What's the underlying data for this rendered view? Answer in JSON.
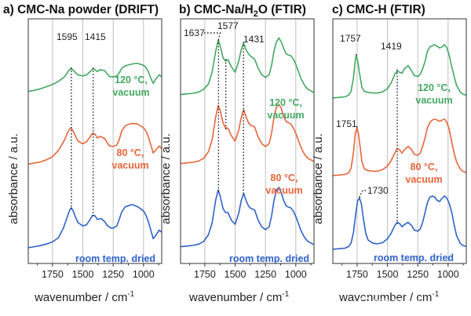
{
  "colors": {
    "green": "#43a861",
    "orange": "#e8653a",
    "blue": "#2f62c8"
  },
  "axis": {
    "ylabel": "absorbance / a.u.",
    "xlabel_main": "wavenumber / cm",
    "xlabel_sup": "-1"
  },
  "watermark": "新能源Leader",
  "chart_data": [
    {
      "type": "line",
      "title": "a) CMC-Na powder (DRIFT)",
      "xlabel": "wavenumber / cm-1",
      "ylabel": "absorbance / a.u.",
      "xlim": [
        1950,
        850
      ],
      "x_reversed": true,
      "ticks": [
        1750,
        1500,
        1250,
        1000
      ],
      "tick_labels": [
        "1750",
        "1500",
        "1250",
        "1000"
      ],
      "grid": [
        1750,
        1500,
        1250,
        1000
      ],
      "peak_marks": [
        {
          "x": 1595,
          "label": "1595",
          "on": [
            0,
            1,
            2
          ]
        },
        {
          "x": 1415,
          "label": "1415",
          "on": [
            0,
            1,
            2
          ]
        }
      ],
      "series": [
        {
          "label": "120 °C, vacuum",
          "color": "green",
          "x": [
            1950,
            1900,
            1850,
            1800,
            1750,
            1700,
            1650,
            1620,
            1600,
            1580,
            1560,
            1540,
            1500,
            1470,
            1440,
            1420,
            1400,
            1380,
            1360,
            1320,
            1300,
            1280,
            1250,
            1220,
            1200,
            1180,
            1150,
            1120,
            1100,
            1060,
            1040,
            1000,
            980,
            960,
            940,
            920,
            900,
            870,
            850
          ],
          "y": [
            0.05,
            0.07,
            0.1,
            0.14,
            0.18,
            0.24,
            0.33,
            0.43,
            0.48,
            0.45,
            0.4,
            0.36,
            0.34,
            0.36,
            0.42,
            0.47,
            0.46,
            0.42,
            0.46,
            0.44,
            0.38,
            0.33,
            0.32,
            0.34,
            0.4,
            0.48,
            0.53,
            0.55,
            0.56,
            0.58,
            0.57,
            0.54,
            0.5,
            0.42,
            0.3,
            0.2,
            0.28,
            0.36,
            0.32
          ]
        },
        {
          "label": "80 °C, vacuum",
          "color": "orange",
          "x": [
            1950,
            1900,
            1850,
            1800,
            1750,
            1700,
            1650,
            1620,
            1600,
            1580,
            1560,
            1540,
            1500,
            1470,
            1440,
            1420,
            1400,
            1380,
            1360,
            1320,
            1300,
            1280,
            1250,
            1220,
            1200,
            1180,
            1150,
            1120,
            1100,
            1060,
            1040,
            1000,
            980,
            960,
            940,
            920,
            900,
            870,
            850
          ],
          "y": [
            0.04,
            0.06,
            0.08,
            0.12,
            0.18,
            0.3,
            0.5,
            0.66,
            0.72,
            0.66,
            0.56,
            0.47,
            0.42,
            0.46,
            0.55,
            0.62,
            0.6,
            0.53,
            0.56,
            0.52,
            0.44,
            0.38,
            0.37,
            0.4,
            0.5,
            0.66,
            0.76,
            0.79,
            0.8,
            0.8,
            0.78,
            0.72,
            0.66,
            0.55,
            0.4,
            0.25,
            0.3,
            0.38,
            0.33
          ]
        },
        {
          "label": "room temp. dried",
          "color": "blue",
          "x": [
            1950,
            1900,
            1850,
            1800,
            1750,
            1700,
            1660,
            1630,
            1610,
            1595,
            1580,
            1560,
            1540,
            1500,
            1470,
            1440,
            1420,
            1400,
            1380,
            1350,
            1320,
            1300,
            1270,
            1250,
            1220,
            1200,
            1180,
            1150,
            1120,
            1100,
            1070,
            1050,
            1030,
            1000,
            980,
            960,
            940,
            920,
            900,
            870,
            850
          ],
          "y": [
            0.03,
            0.05,
            0.07,
            0.1,
            0.14,
            0.22,
            0.4,
            0.6,
            0.73,
            0.78,
            0.72,
            0.6,
            0.5,
            0.44,
            0.46,
            0.56,
            0.64,
            0.63,
            0.56,
            0.58,
            0.52,
            0.45,
            0.4,
            0.4,
            0.44,
            0.56,
            0.7,
            0.8,
            0.82,
            0.84,
            0.82,
            0.8,
            0.77,
            0.72,
            0.64,
            0.52,
            0.36,
            0.2,
            0.26,
            0.36,
            0.32
          ]
        }
      ]
    },
    {
      "type": "line",
      "title": "b) CMC-Na/H2O (FTIR)",
      "title_parts": {
        "before": "b) CMC-Na/H",
        "sub": "2",
        "after": "O (FTIR)"
      },
      "xlabel": "wavenumber / cm-1",
      "ylabel": "absorbance / a.u.",
      "xlim": [
        1950,
        850
      ],
      "x_reversed": true,
      "ticks": [
        1750,
        1500,
        1250,
        1000
      ],
      "tick_labels": [
        "1750",
        "1500",
        "1250",
        "1000"
      ],
      "grid": [
        1750,
        1500,
        1250,
        1000
      ],
      "peak_marks": [
        {
          "x": 1637,
          "label": "1637",
          "on": [
            0,
            1,
            2
          ]
        },
        {
          "x": 1577,
          "label": "1577",
          "on": [
            0,
            1
          ]
        },
        {
          "x": 1431,
          "label": "1431",
          "on": [
            0,
            1,
            2
          ]
        }
      ],
      "series": [
        {
          "label": "120 °C, vacuum",
          "color": "green",
          "x": [
            1950,
            1900,
            1850,
            1800,
            1760,
            1720,
            1690,
            1660,
            1640,
            1625,
            1600,
            1580,
            1560,
            1530,
            1500,
            1470,
            1450,
            1430,
            1410,
            1390,
            1370,
            1340,
            1310,
            1280,
            1250,
            1220,
            1200,
            1180,
            1160,
            1140,
            1120,
            1100,
            1080,
            1060,
            1040,
            1020,
            1000,
            980,
            960,
            940,
            920,
            900,
            880,
            860,
            850
          ],
          "y": [
            0.04,
            0.05,
            0.06,
            0.08,
            0.12,
            0.2,
            0.38,
            0.7,
            0.86,
            0.8,
            0.6,
            0.55,
            0.57,
            0.46,
            0.38,
            0.55,
            0.72,
            0.82,
            0.72,
            0.66,
            0.62,
            0.58,
            0.44,
            0.34,
            0.3,
            0.34,
            0.48,
            0.7,
            0.84,
            0.9,
            0.84,
            0.74,
            0.66,
            0.64,
            0.63,
            0.58,
            0.5,
            0.4,
            0.3,
            0.22,
            0.16,
            0.12,
            0.1,
            0.08,
            0.08
          ]
        },
        {
          "label": "80 °C, vacuum",
          "color": "orange",
          "x": [
            1950,
            1900,
            1850,
            1800,
            1760,
            1720,
            1690,
            1660,
            1640,
            1625,
            1600,
            1580,
            1560,
            1530,
            1500,
            1470,
            1450,
            1430,
            1410,
            1390,
            1370,
            1340,
            1310,
            1280,
            1250,
            1220,
            1200,
            1180,
            1160,
            1140,
            1120,
            1100,
            1080,
            1060,
            1040,
            1020,
            1000,
            980,
            960,
            940,
            920,
            900,
            880,
            860,
            850
          ],
          "y": [
            0.04,
            0.05,
            0.06,
            0.08,
            0.12,
            0.22,
            0.4,
            0.75,
            0.92,
            0.86,
            0.66,
            0.58,
            0.58,
            0.46,
            0.38,
            0.55,
            0.74,
            0.86,
            0.75,
            0.66,
            0.62,
            0.6,
            0.44,
            0.34,
            0.3,
            0.34,
            0.5,
            0.74,
            0.9,
            0.94,
            0.88,
            0.76,
            0.68,
            0.66,
            0.64,
            0.58,
            0.5,
            0.4,
            0.3,
            0.22,
            0.16,
            0.12,
            0.1,
            0.08,
            0.08
          ]
        },
        {
          "label": "room temp. dried",
          "color": "blue",
          "x": [
            1950,
            1900,
            1850,
            1800,
            1760,
            1720,
            1690,
            1660,
            1640,
            1625,
            1600,
            1580,
            1560,
            1530,
            1500,
            1470,
            1450,
            1430,
            1410,
            1390,
            1370,
            1340,
            1310,
            1280,
            1250,
            1220,
            1200,
            1180,
            1160,
            1140,
            1120,
            1100,
            1080,
            1060,
            1040,
            1020,
            1000,
            980,
            960,
            940,
            920,
            900,
            880,
            860,
            850
          ],
          "y": [
            0.04,
            0.05,
            0.06,
            0.08,
            0.12,
            0.22,
            0.4,
            0.75,
            0.9,
            0.82,
            0.62,
            0.56,
            0.56,
            0.44,
            0.38,
            0.55,
            0.74,
            0.85,
            0.74,
            0.66,
            0.62,
            0.6,
            0.44,
            0.34,
            0.3,
            0.34,
            0.5,
            0.74,
            0.9,
            0.94,
            0.86,
            0.74,
            0.66,
            0.64,
            0.63,
            0.58,
            0.5,
            0.4,
            0.3,
            0.22,
            0.16,
            0.12,
            0.1,
            0.08,
            0.08
          ]
        }
      ]
    },
    {
      "type": "line",
      "title": "c) CMC-H (FTIR)",
      "xlabel": "wavenumber / cm-1",
      "ylabel": "absorbance / a.u.",
      "xlim": [
        1950,
        850
      ],
      "x_reversed": true,
      "ticks": [
        1750,
        1500,
        1250,
        1000
      ],
      "tick_labels": [
        "1750",
        "1500",
        "1250",
        "1000"
      ],
      "grid": [
        1750,
        1500,
        1250,
        1000
      ],
      "peak_marks": [
        {
          "x": 1757,
          "label": "1757",
          "on": [
            0
          ]
        },
        {
          "x": 1751,
          "label": "1751",
          "on": [
            1
          ]
        },
        {
          "x": 1730,
          "label": "1730",
          "on": [
            2
          ]
        },
        {
          "x": 1419,
          "label": "1419",
          "on": [
            0,
            1,
            2
          ]
        }
      ],
      "series": [
        {
          "label": "120 °C, vacuum",
          "color": "green",
          "x": [
            1950,
            1900,
            1850,
            1820,
            1800,
            1780,
            1765,
            1757,
            1745,
            1730,
            1710,
            1690,
            1660,
            1620,
            1580,
            1540,
            1500,
            1470,
            1440,
            1420,
            1400,
            1380,
            1360,
            1330,
            1300,
            1280,
            1250,
            1230,
            1210,
            1190,
            1170,
            1150,
            1130,
            1110,
            1090,
            1070,
            1050,
            1030,
            1010,
            990,
            970,
            950,
            930,
            900,
            880,
            850
          ],
          "y": [
            0.03,
            0.04,
            0.05,
            0.08,
            0.15,
            0.4,
            0.72,
            0.8,
            0.7,
            0.48,
            0.22,
            0.15,
            0.13,
            0.12,
            0.12,
            0.14,
            0.2,
            0.3,
            0.46,
            0.52,
            0.5,
            0.48,
            0.56,
            0.62,
            0.52,
            0.44,
            0.42,
            0.46,
            0.56,
            0.7,
            0.88,
            0.96,
            0.98,
            1.0,
            0.97,
            0.94,
            0.96,
            1.0,
            0.94,
            0.8,
            0.6,
            0.42,
            0.26,
            0.14,
            0.1,
            0.08
          ]
        },
        {
          "label": "80 °C, vacuum",
          "color": "orange",
          "x": [
            1950,
            1900,
            1850,
            1820,
            1800,
            1780,
            1765,
            1751,
            1740,
            1725,
            1710,
            1690,
            1660,
            1620,
            1580,
            1540,
            1500,
            1470,
            1440,
            1420,
            1400,
            1380,
            1360,
            1330,
            1300,
            1280,
            1250,
            1230,
            1210,
            1190,
            1170,
            1150,
            1130,
            1110,
            1090,
            1070,
            1050,
            1030,
            1010,
            990,
            970,
            950,
            930,
            900,
            880,
            850
          ],
          "y": [
            0.03,
            0.04,
            0.05,
            0.08,
            0.16,
            0.45,
            0.8,
            0.9,
            0.8,
            0.55,
            0.28,
            0.15,
            0.12,
            0.11,
            0.11,
            0.14,
            0.2,
            0.3,
            0.44,
            0.52,
            0.5,
            0.44,
            0.5,
            0.56,
            0.5,
            0.42,
            0.4,
            0.44,
            0.56,
            0.72,
            0.9,
            1.0,
            1.04,
            1.06,
            1.04,
            1.02,
            1.04,
            1.06,
            1.0,
            0.86,
            0.64,
            0.44,
            0.28,
            0.15,
            0.11,
            0.08
          ]
        },
        {
          "label": "room temp. dried",
          "color": "blue",
          "x": [
            1950,
            1900,
            1850,
            1820,
            1800,
            1780,
            1760,
            1745,
            1730,
            1715,
            1700,
            1680,
            1660,
            1620,
            1580,
            1540,
            1500,
            1470,
            1440,
            1420,
            1400,
            1380,
            1360,
            1330,
            1300,
            1280,
            1250,
            1230,
            1210,
            1190,
            1170,
            1150,
            1130,
            1110,
            1090,
            1070,
            1050,
            1030,
            1010,
            990,
            970,
            950,
            930,
            900,
            880,
            850
          ],
          "y": [
            0.03,
            0.04,
            0.05,
            0.08,
            0.14,
            0.34,
            0.7,
            0.92,
            0.96,
            0.86,
            0.62,
            0.34,
            0.2,
            0.14,
            0.13,
            0.15,
            0.22,
            0.32,
            0.46,
            0.52,
            0.5,
            0.44,
            0.48,
            0.52,
            0.46,
            0.38,
            0.36,
            0.4,
            0.52,
            0.7,
            0.88,
            0.98,
            1.0,
            0.98,
            0.92,
            0.9,
            0.96,
            1.0,
            0.96,
            0.86,
            0.7,
            0.48,
            0.28,
            0.14,
            0.1,
            0.08
          ]
        }
      ]
    }
  ]
}
